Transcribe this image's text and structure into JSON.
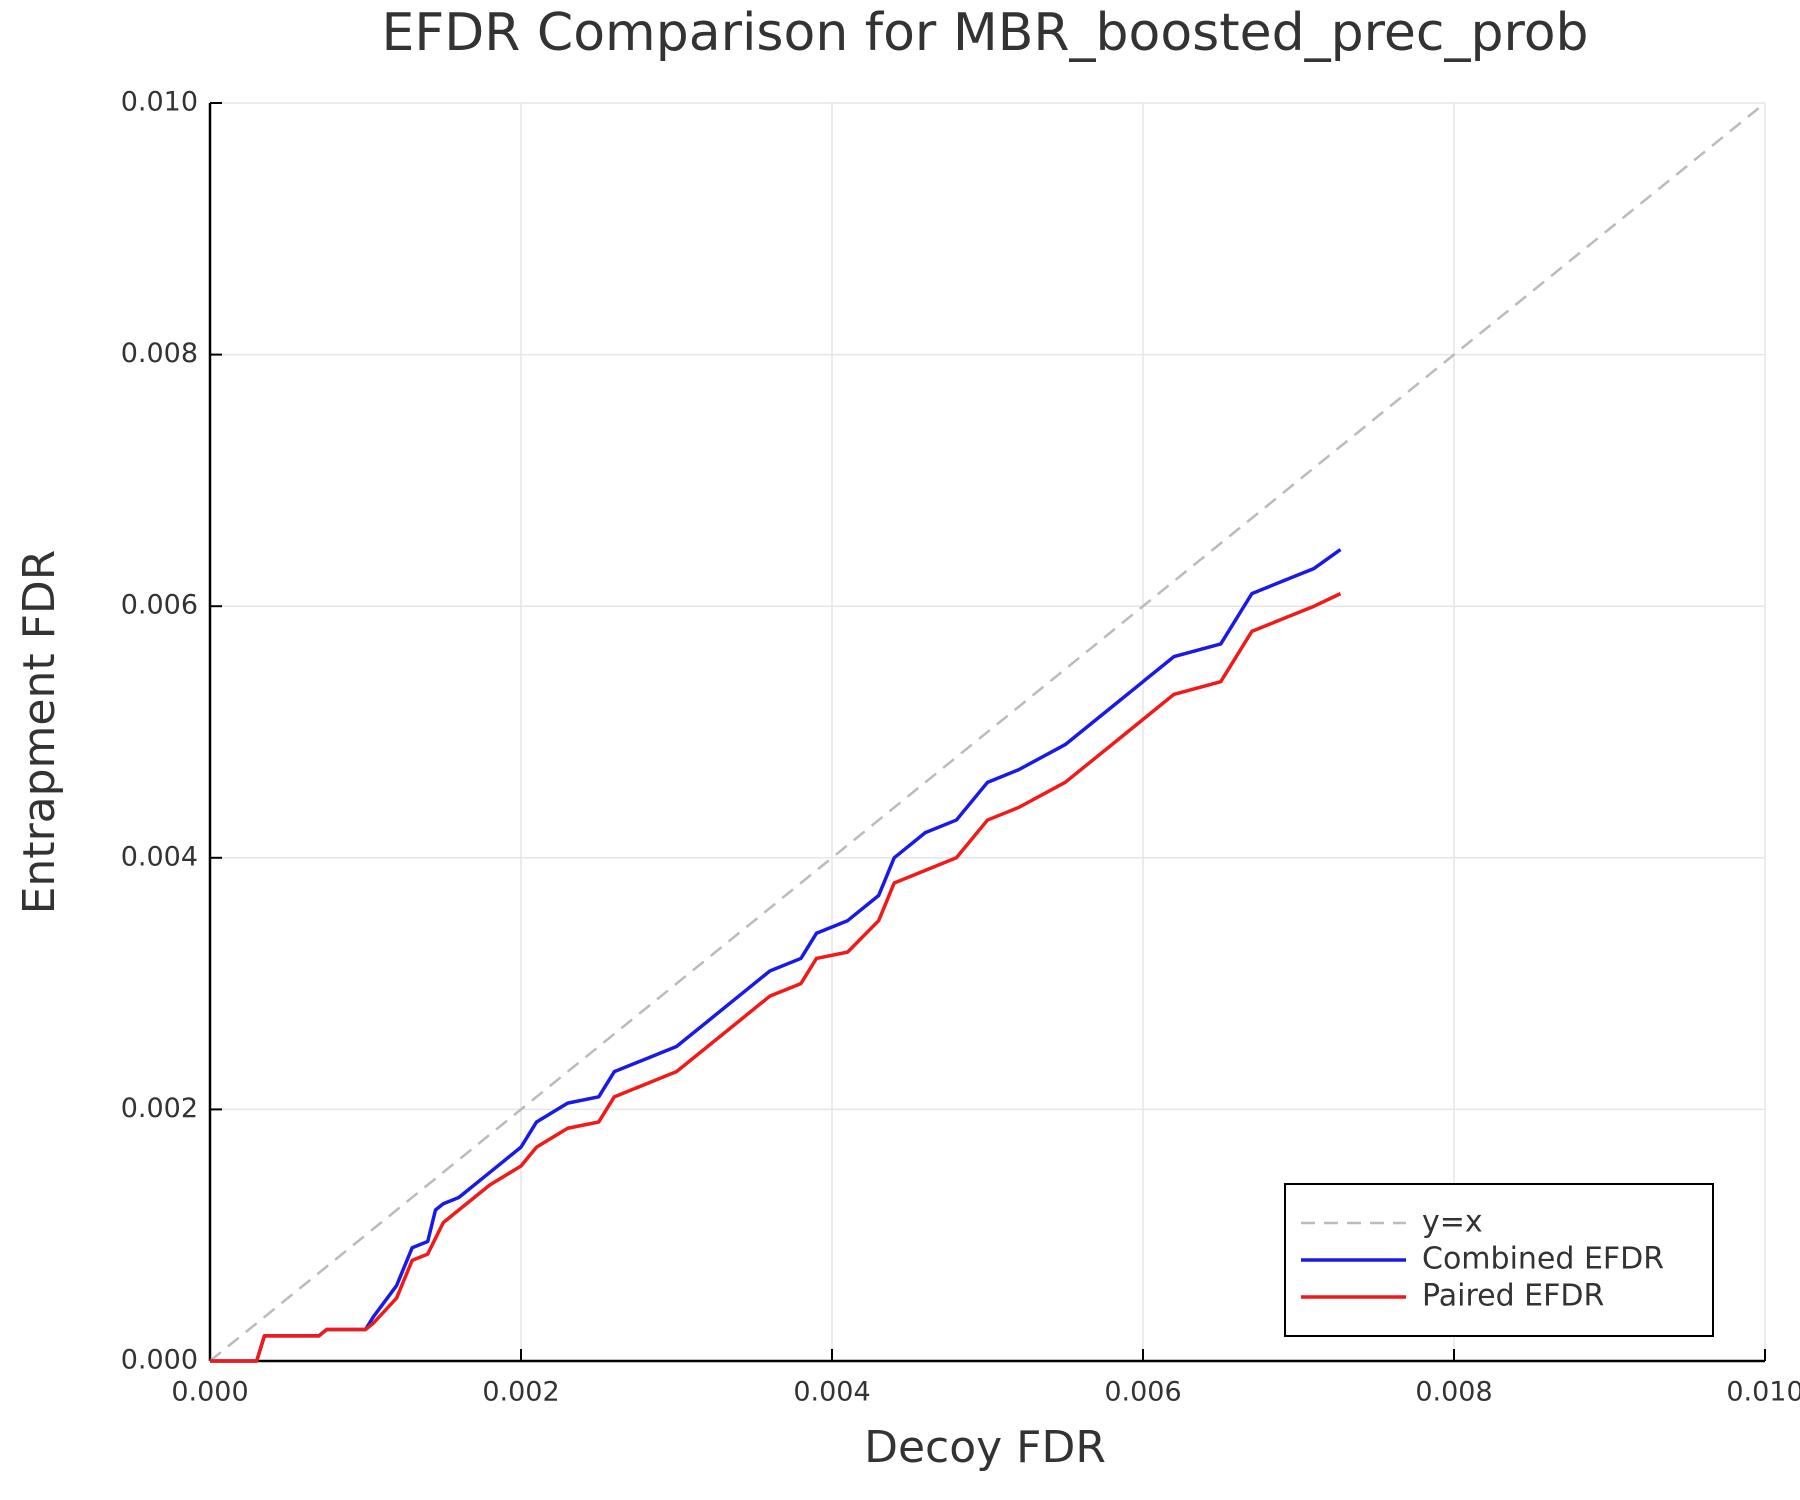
{
  "chart_data": {
    "type": "line",
    "title": "EFDR Comparison for MBR_boosted_prec_prob",
    "xlabel": "Decoy FDR",
    "ylabel": "Entrapment FDR",
    "xlim": [
      0,
      0.01
    ],
    "ylim": [
      0,
      0.01
    ],
    "xticks": [
      {
        "value": 0,
        "label": "0.000"
      },
      0.002,
      0.004,
      0.006,
      0.008,
      {
        "value": 0.01,
        "label": "0.010"
      }
    ],
    "yticks": [
      {
        "value": 0,
        "label": "0.000"
      },
      0.002,
      0.004,
      0.006,
      0.008,
      {
        "value": 0.01,
        "label": "0.010"
      }
    ],
    "grid": true,
    "legend": "bottom right",
    "series": [
      {
        "name": "y=x",
        "color": "#bbbbbb",
        "style": "dashed",
        "x": [
          0,
          0.01
        ],
        "values": [
          0,
          0.01
        ]
      },
      {
        "name": "Combined EFDR",
        "color": "#1a1ae6",
        "style": "solid",
        "x": [
          0,
          0.0003,
          0.00035,
          0.0007,
          0.00075,
          0.001,
          0.00105,
          0.0012,
          0.0013,
          0.0014,
          0.00145,
          0.0015,
          0.0016,
          0.0018,
          0.002,
          0.0021,
          0.0023,
          0.0025,
          0.0026,
          0.0028,
          0.003,
          0.0032,
          0.0034,
          0.0036,
          0.0038,
          0.0039,
          0.0041,
          0.0043,
          0.0044,
          0.0046,
          0.0048,
          0.005,
          0.0052,
          0.0055,
          0.0058,
          0.006,
          0.0062,
          0.0065,
          0.0066,
          0.0067,
          0.0069,
          0.0071,
          0.00727
        ],
        "values": [
          0,
          0,
          0.0002,
          0.0002,
          0.00025,
          0.00025,
          0.00035,
          0.0006,
          0.0009,
          0.00095,
          0.0012,
          0.00125,
          0.0013,
          0.0015,
          0.0017,
          0.0019,
          0.00205,
          0.0021,
          0.0023,
          0.0024,
          0.0025,
          0.0027,
          0.0029,
          0.0031,
          0.0032,
          0.0034,
          0.0035,
          0.0037,
          0.004,
          0.0042,
          0.0043,
          0.0046,
          0.0047,
          0.0049,
          0.0052,
          0.0054,
          0.0056,
          0.0057,
          0.0059,
          0.0061,
          0.0062,
          0.0063,
          0.00645
        ]
      },
      {
        "name": "Paired EFDR",
        "color": "#f01a1a",
        "style": "solid",
        "x": [
          0,
          0.0003,
          0.00035,
          0.0007,
          0.00075,
          0.001,
          0.00105,
          0.0012,
          0.0013,
          0.0014,
          0.0015,
          0.0016,
          0.0018,
          0.002,
          0.0021,
          0.0023,
          0.0025,
          0.0026,
          0.0028,
          0.003,
          0.0032,
          0.0034,
          0.0036,
          0.0038,
          0.0039,
          0.0041,
          0.0043,
          0.0044,
          0.0046,
          0.0048,
          0.005,
          0.0052,
          0.0055,
          0.0058,
          0.006,
          0.0062,
          0.0065,
          0.0066,
          0.0067,
          0.0069,
          0.0071,
          0.00727
        ],
        "values": [
          0,
          0,
          0.0002,
          0.0002,
          0.00025,
          0.00025,
          0.0003,
          0.0005,
          0.0008,
          0.00085,
          0.0011,
          0.0012,
          0.0014,
          0.00155,
          0.0017,
          0.00185,
          0.0019,
          0.0021,
          0.0022,
          0.0023,
          0.0025,
          0.0027,
          0.0029,
          0.003,
          0.0032,
          0.00325,
          0.0035,
          0.0038,
          0.0039,
          0.004,
          0.0043,
          0.0044,
          0.0046,
          0.0049,
          0.0051,
          0.0053,
          0.0054,
          0.0056,
          0.0058,
          0.0059,
          0.006,
          0.0061
        ]
      }
    ]
  }
}
